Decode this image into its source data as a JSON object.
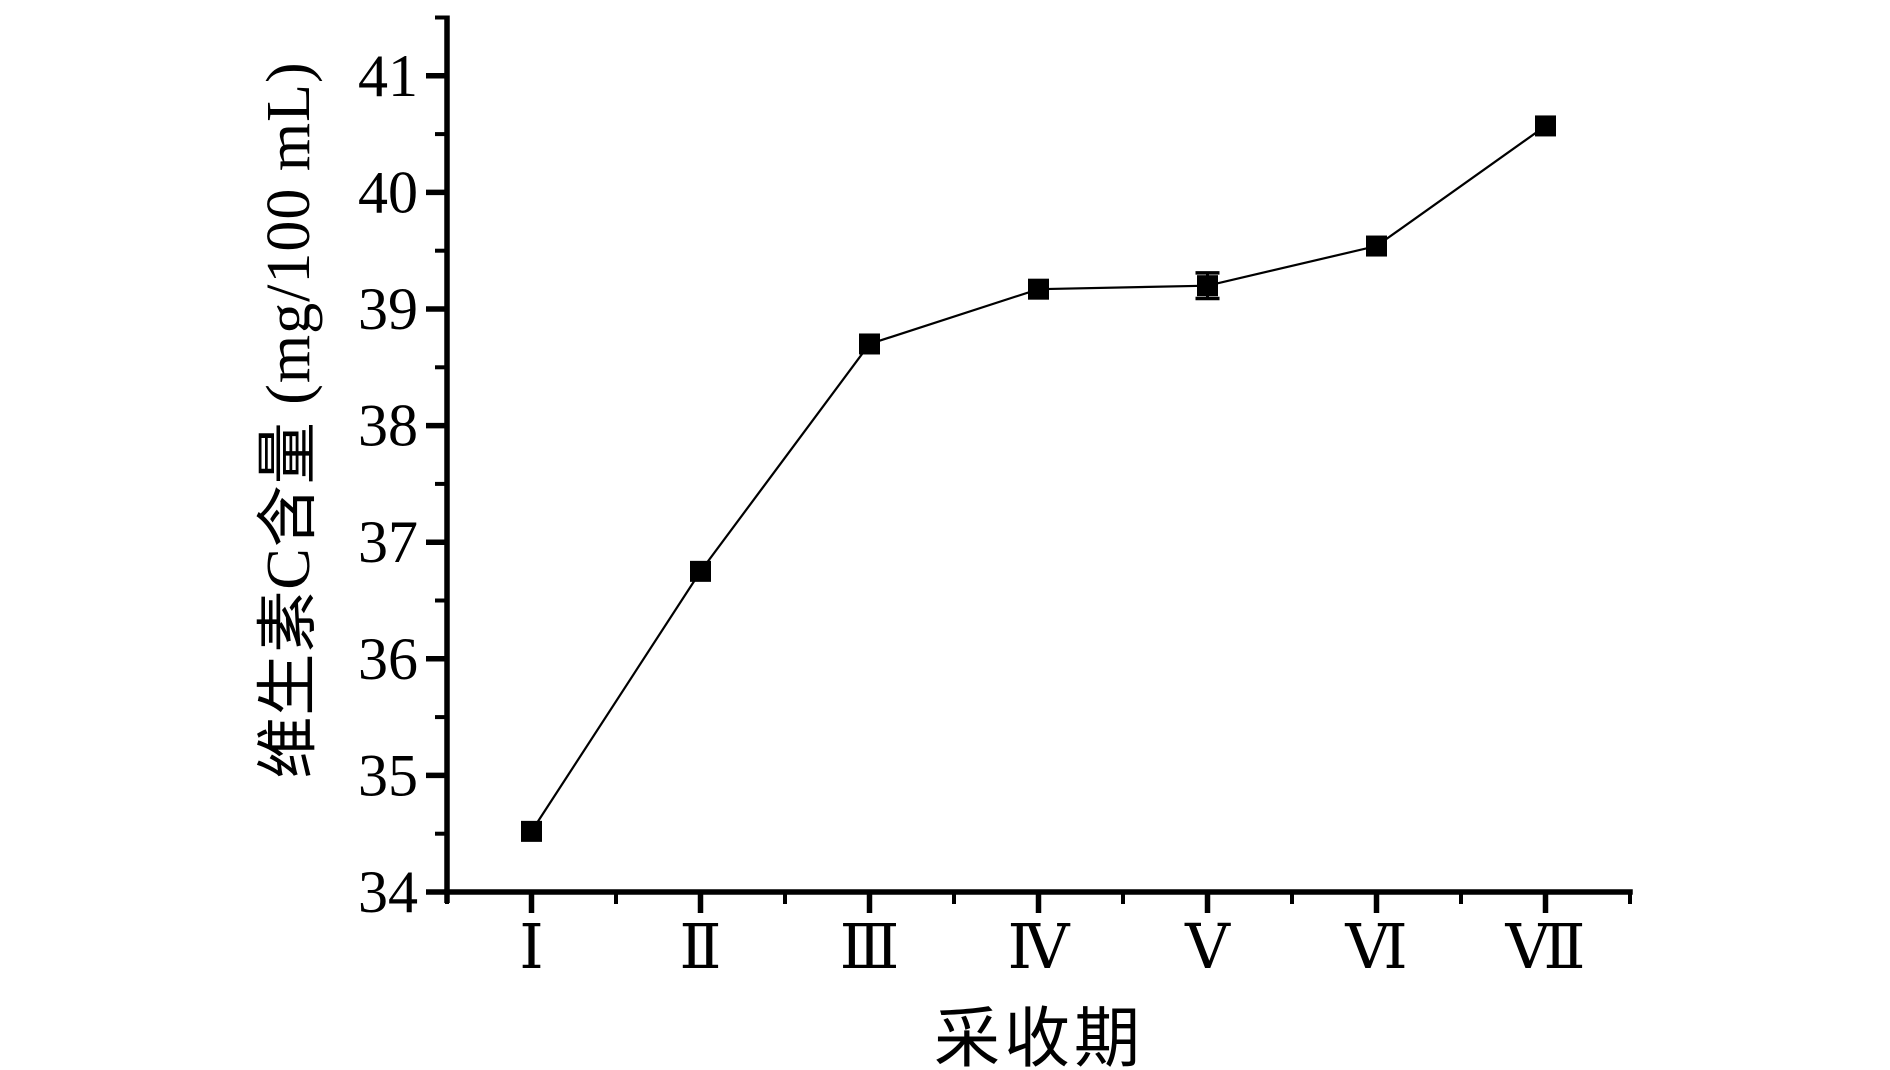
{
  "page": {
    "background_color": "#ffffff",
    "foreground_color": "#000000"
  },
  "chart_data": {
    "type": "line",
    "title": "",
    "xlabel": "采收期",
    "ylabel": "维生素C含量 (mg/100 mL)",
    "categories": [
      "Ⅰ",
      "Ⅱ",
      "Ⅲ",
      "Ⅳ",
      "Ⅴ",
      "Ⅵ",
      "Ⅶ"
    ],
    "series": [
      {
        "name": "维生素C含量",
        "values": [
          34.52,
          36.75,
          38.7,
          39.17,
          39.2,
          39.54,
          40.57
        ],
        "error_bars": [
          null,
          null,
          null,
          null,
          0.11,
          null,
          null
        ],
        "marker": "square",
        "color": "#000000"
      }
    ],
    "ylim": [
      34,
      41.5
    ],
    "yticks": [
      34,
      35,
      36,
      37,
      38,
      39,
      40,
      41
    ],
    "y_minor_tick_step": 0.5,
    "x_minor_ticks_between_categories": true,
    "grid": false,
    "legend": null,
    "axis_color": "#000000"
  }
}
